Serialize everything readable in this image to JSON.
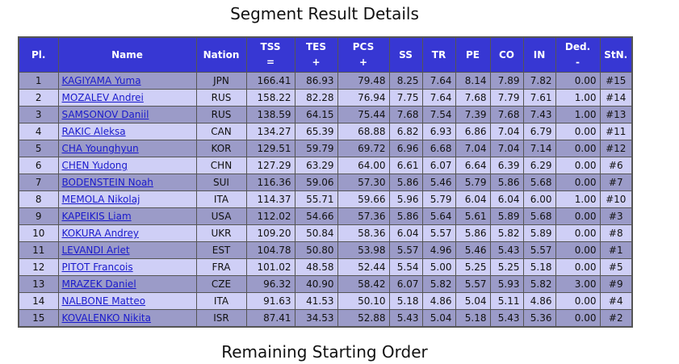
{
  "segment_title": "Segment Result Details",
  "remaining_title": "Remaining Starting Order",
  "headers": {
    "pl": "Pl.",
    "name": "Name",
    "nation": "Nation",
    "tss": "TSS",
    "tss_sub": "=",
    "tes": "TES",
    "tes_sub": "+",
    "pcs": "PCS",
    "pcs_sub": "+",
    "ss": "SS",
    "tr": "TR",
    "pe": "PE",
    "co": "CO",
    "in": "IN",
    "ded": "Ded.",
    "ded_sub": "-",
    "stn": "StN."
  },
  "rows": [
    {
      "pl": "1",
      "name": "KAGIYAMA Yuma",
      "nation": "JPN",
      "tss": "166.41",
      "tes": "86.93",
      "pcs": "79.48",
      "ss": "8.25",
      "tr": "7.64",
      "pe": "8.14",
      "co": "7.89",
      "in": "7.82",
      "ded": "0.00",
      "stn": "#15"
    },
    {
      "pl": "2",
      "name": "MOZALEV Andrei",
      "nation": "RUS",
      "tss": "158.22",
      "tes": "82.28",
      "pcs": "76.94",
      "ss": "7.75",
      "tr": "7.64",
      "pe": "7.68",
      "co": "7.79",
      "in": "7.61",
      "ded": "1.00",
      "stn": "#14"
    },
    {
      "pl": "3",
      "name": "SAMSONOV Daniil",
      "nation": "RUS",
      "tss": "138.59",
      "tes": "64.15",
      "pcs": "75.44",
      "ss": "7.68",
      "tr": "7.54",
      "pe": "7.39",
      "co": "7.68",
      "in": "7.43",
      "ded": "1.00",
      "stn": "#13"
    },
    {
      "pl": "4",
      "name": "RAKIC Aleksa",
      "nation": "CAN",
      "tss": "134.27",
      "tes": "65.39",
      "pcs": "68.88",
      "ss": "6.82",
      "tr": "6.93",
      "pe": "6.86",
      "co": "7.04",
      "in": "6.79",
      "ded": "0.00",
      "stn": "#11"
    },
    {
      "pl": "5",
      "name": "CHA Younghyun",
      "nation": "KOR",
      "tss": "129.51",
      "tes": "59.79",
      "pcs": "69.72",
      "ss": "6.96",
      "tr": "6.68",
      "pe": "7.04",
      "co": "7.04",
      "in": "7.14",
      "ded": "0.00",
      "stn": "#12"
    },
    {
      "pl": "6",
      "name": "CHEN Yudong",
      "nation": "CHN",
      "tss": "127.29",
      "tes": "63.29",
      "pcs": "64.00",
      "ss": "6.61",
      "tr": "6.07",
      "pe": "6.64",
      "co": "6.39",
      "in": "6.29",
      "ded": "0.00",
      "stn": "#6"
    },
    {
      "pl": "7",
      "name": "BODENSTEIN Noah",
      "nation": "SUI",
      "tss": "116.36",
      "tes": "59.06",
      "pcs": "57.30",
      "ss": "5.86",
      "tr": "5.46",
      "pe": "5.79",
      "co": "5.86",
      "in": "5.68",
      "ded": "0.00",
      "stn": "#7"
    },
    {
      "pl": "8",
      "name": "MEMOLA Nikolaj",
      "nation": "ITA",
      "tss": "114.37",
      "tes": "55.71",
      "pcs": "59.66",
      "ss": "5.96",
      "tr": "5.79",
      "pe": "6.04",
      "co": "6.04",
      "in": "6.00",
      "ded": "1.00",
      "stn": "#10"
    },
    {
      "pl": "9",
      "name": "KAPEIKIS Liam",
      "nation": "USA",
      "tss": "112.02",
      "tes": "54.66",
      "pcs": "57.36",
      "ss": "5.86",
      "tr": "5.64",
      "pe": "5.61",
      "co": "5.89",
      "in": "5.68",
      "ded": "0.00",
      "stn": "#3"
    },
    {
      "pl": "10",
      "name": "KOKURA Andrey",
      "nation": "UKR",
      "tss": "109.20",
      "tes": "50.84",
      "pcs": "58.36",
      "ss": "6.04",
      "tr": "5.57",
      "pe": "5.86",
      "co": "5.82",
      "in": "5.89",
      "ded": "0.00",
      "stn": "#8"
    },
    {
      "pl": "11",
      "name": "LEVANDI Arlet",
      "nation": "EST",
      "tss": "104.78",
      "tes": "50.80",
      "pcs": "53.98",
      "ss": "5.57",
      "tr": "4.96",
      "pe": "5.46",
      "co": "5.43",
      "in": "5.57",
      "ded": "0.00",
      "stn": "#1"
    },
    {
      "pl": "12",
      "name": "PITOT Francois",
      "nation": "FRA",
      "tss": "101.02",
      "tes": "48.58",
      "pcs": "52.44",
      "ss": "5.54",
      "tr": "5.00",
      "pe": "5.25",
      "co": "5.25",
      "in": "5.18",
      "ded": "0.00",
      "stn": "#5"
    },
    {
      "pl": "13",
      "name": "MRAZEK Daniel",
      "nation": "CZE",
      "tss": "96.32",
      "tes": "40.90",
      "pcs": "58.42",
      "ss": "6.07",
      "tr": "5.82",
      "pe": "5.57",
      "co": "5.93",
      "in": "5.82",
      "ded": "3.00",
      "stn": "#9"
    },
    {
      "pl": "14",
      "name": "NALBONE Matteo",
      "nation": "ITA",
      "tss": "91.63",
      "tes": "41.53",
      "pcs": "50.10",
      "ss": "5.18",
      "tr": "4.86",
      "pe": "5.04",
      "co": "5.11",
      "in": "4.86",
      "ded": "0.00",
      "stn": "#4"
    },
    {
      "pl": "15",
      "name": "KOVALENKO Nikita",
      "nation": "ISR",
      "tss": "87.41",
      "tes": "34.53",
      "pcs": "52.88",
      "ss": "5.43",
      "tr": "5.04",
      "pe": "5.18",
      "co": "5.43",
      "in": "5.36",
      "ded": "0.00",
      "stn": "#2"
    }
  ],
  "colors": {
    "header_bg": "#3737d3",
    "row_odd_bg": "#9b9bc8",
    "row_even_bg": "#cfcff6",
    "link": "#1a1acc"
  }
}
